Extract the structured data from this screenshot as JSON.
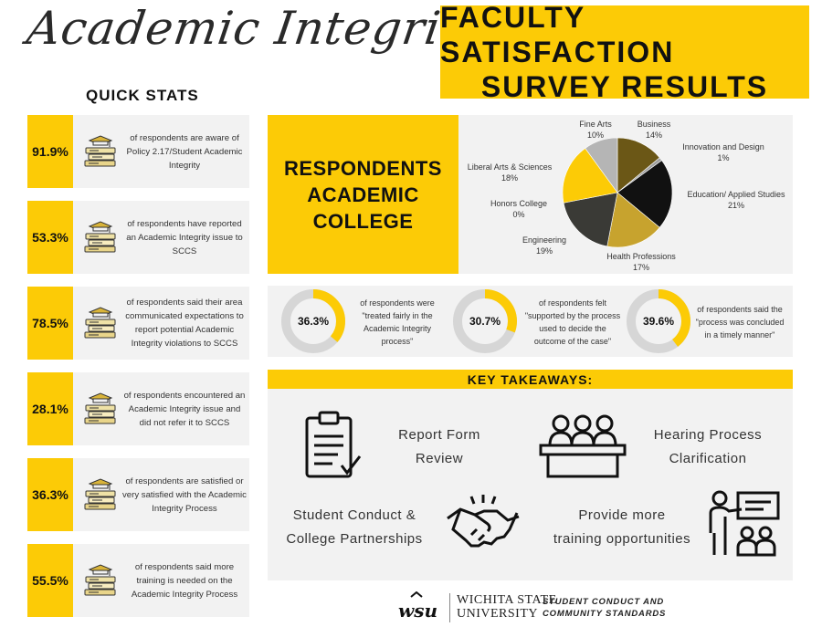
{
  "header": {
    "script_title": "Academic Integrity:",
    "survey_title_line1": "FACULTY SATISFACTION",
    "survey_title_line2": "SURVEY RESULTS",
    "quick_stats": "QUICK STATS"
  },
  "stats": [
    {
      "pct": "91.9%",
      "text": "of respondents are aware of Policy 2.17/Student Academic Integrity",
      "icon": "graduation-books-icon"
    },
    {
      "pct": "53.3%",
      "text": "of respondents have reported an Academic Integrity issue to SCCS",
      "icon": "graduation-books-icon"
    },
    {
      "pct": "78.5%",
      "text": "of respondents said their area communicated expectations to report potential Academic Integrity violations to SCCS",
      "icon": "graduation-books-icon"
    },
    {
      "pct": "28.1%",
      "text": "of respondents encountered an Academic Integrity issue and did not refer it to SCCS",
      "icon": "graduation-books-icon"
    },
    {
      "pct": "36.3%",
      "text": "of respondents are satisfied or very satisfied with the Academic Integrity Process",
      "icon": "graduation-books-icon"
    },
    {
      "pct": "55.5%",
      "text": "of respondents said more training is needed on the Academic Integrity Process",
      "icon": "graduation-books-icon"
    }
  ],
  "respondents": {
    "line1": "RESPONDENTS",
    "line2": "ACADEMIC",
    "line3": "COLLEGE"
  },
  "chart_data": [
    {
      "type": "pie",
      "title": "RESPONDENTS ACADEMIC COLLEGE",
      "categories": [
        "Business",
        "Innovation and Design",
        "Education/ Applied Studies",
        "Health Professions",
        "Engineering",
        "Honors College",
        "Liberal Arts & Sciences",
        "Fine Arts"
      ],
      "values": [
        14,
        1,
        21,
        17,
        19,
        0,
        18,
        10
      ],
      "labels": [
        "14%",
        "1%",
        "21%",
        "17%",
        "19%",
        "0%",
        "18%",
        "10%"
      ],
      "colors": [
        "#6b5716",
        "#9e9e9e",
        "#111111",
        "#c7a32e",
        "#3a3a36",
        "#ffffff",
        "#FCCB06",
        "#b5b5b5"
      ]
    },
    {
      "type": "pie",
      "categories": [
        "treated fairly in the Academic Integrity process",
        "remainder"
      ],
      "values": [
        36.3,
        63.7
      ],
      "label": "36.3%",
      "colors": [
        "#FCCB06",
        "#d6d6d6"
      ]
    },
    {
      "type": "pie",
      "categories": [
        "supported by the process used to decide the outcome of the case",
        "remainder"
      ],
      "values": [
        30.7,
        69.3
      ],
      "label": "30.7%",
      "colors": [
        "#FCCB06",
        "#d6d6d6"
      ]
    },
    {
      "type": "pie",
      "categories": [
        "process was concluded in a timely manner",
        "remainder"
      ],
      "values": [
        39.6,
        60.4
      ],
      "label": "39.6%",
      "colors": [
        "#FCCB06",
        "#d6d6d6"
      ]
    }
  ],
  "donuts": [
    {
      "label": "36.3%",
      "text": "of respondents were \"treated fairly in the Academic Integrity process\""
    },
    {
      "label": "30.7%",
      "text": "of respondents felt \"supported by the process used to decide the outcome of the case\""
    },
    {
      "label": "39.6%",
      "text": "of respondents said the \"process was concluded in a timely manner\""
    }
  ],
  "takeaways": {
    "title": "KEY TAKEAWAYS:",
    "items": [
      {
        "label_line1": "Report Form",
        "label_line2": "Review",
        "icon": "clipboard-checklist-icon"
      },
      {
        "label_line1": "Hearing Process",
        "label_line2": "Clarification",
        "icon": "hearing-panel-icon"
      },
      {
        "label_line1": "Student Conduct &",
        "label_line2": "College Partnerships",
        "icon": "handshake-icon"
      },
      {
        "label_line1": "Provide more",
        "label_line2": "training opportunities",
        "icon": "presentation-training-icon"
      }
    ]
  },
  "footer": {
    "logo_text": "wsu",
    "uni_line1": "WICHITA STATE",
    "uni_line2": "UNIVERSITY",
    "dept_line1": "STUDENT CONDUCT AND",
    "dept_line2": "COMMUNITY STANDARDS"
  },
  "colors": {
    "accent": "#FCCB06",
    "panel": "#f2f2f2",
    "ring": "#d6d6d6"
  }
}
